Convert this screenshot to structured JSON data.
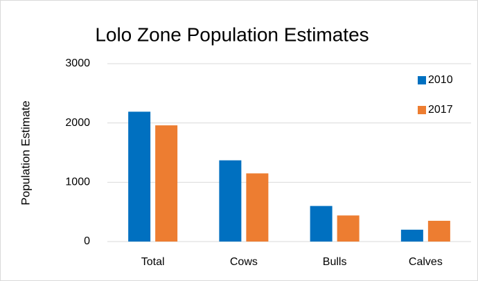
{
  "chart_data": {
    "type": "bar",
    "title": "Lolo Zone Population Estimates",
    "y_label": "Population Estimate",
    "categories": [
      "Total",
      "Cows",
      "Bulls",
      "Calves"
    ],
    "series": [
      {
        "name": "2010",
        "color": "#0070c0",
        "values": [
          2190,
          1370,
          600,
          200
        ]
      },
      {
        "name": "2017",
        "color": "#ed7d31",
        "values": [
          1960,
          1150,
          440,
          350
        ]
      }
    ],
    "ylim": [
      0,
      3000
    ],
    "yticks": [
      0,
      1000,
      2000,
      3000
    ],
    "grid": true,
    "legend": "top-right"
  }
}
